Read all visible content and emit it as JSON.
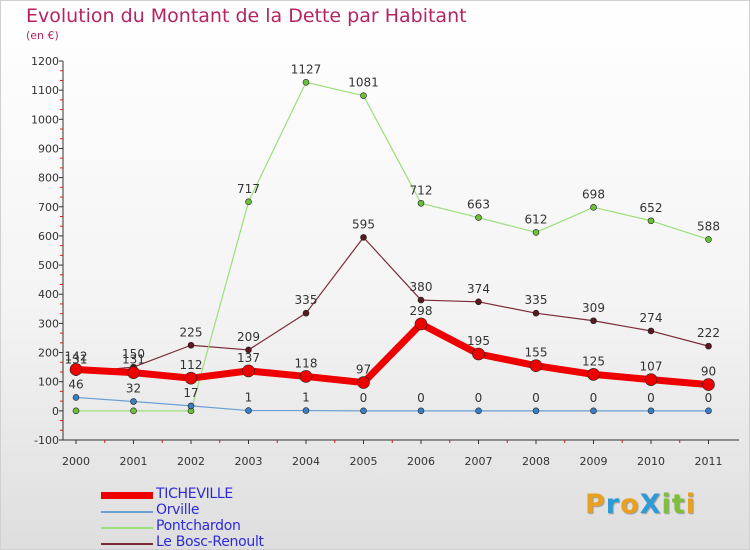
{
  "title": "Evolution du Montant de la Dette par Habitant",
  "subtitle": "(en €)",
  "logo": {
    "text": "ProXiti",
    "letters": [
      "P",
      "r",
      "o",
      "X",
      "i",
      "t",
      "i"
    ],
    "colors": [
      "#e8a020",
      "#2f9ad8",
      "#e8a020",
      "#2f9ad8",
      "#7fbf3a",
      "#7fbf3a",
      "#e8a020"
    ]
  },
  "chart_data": {
    "type": "line",
    "categories": [
      "2000",
      "2001",
      "2002",
      "2003",
      "2004",
      "2005",
      "2006",
      "2007",
      "2008",
      "2009",
      "2010",
      "2011"
    ],
    "ylim": [
      -100,
      1200
    ],
    "yticks": [
      -100,
      0,
      100,
      200,
      300,
      400,
      500,
      600,
      700,
      800,
      900,
      1000,
      1100,
      1200
    ],
    "grid": false,
    "legend_position": "bottom-left",
    "series": [
      {
        "name": "Le Bosc-Renoult",
        "color": "#7a2a35",
        "point_color": "#5a1820",
        "width": 1.2,
        "point_r": 3,
        "values": [
          131,
          150,
          225,
          209,
          335,
          595,
          380,
          374,
          335,
          309,
          274,
          222
        ],
        "labels": [
          "131",
          "150",
          "225",
          "209",
          "335",
          "595",
          "380",
          "374",
          "335",
          "309",
          "274",
          "222"
        ]
      },
      {
        "name": "Pontchardon",
        "color": "#99e07a",
        "point_color": "#6cbf3a",
        "width": 1.2,
        "point_r": 3,
        "values": [
          0,
          0,
          0,
          717,
          1127,
          1081,
          712,
          663,
          612,
          698,
          652,
          588
        ],
        "labels": [
          "",
          "",
          "",
          "717",
          "1127",
          "1081",
          "712",
          "663",
          "612",
          "698",
          "652",
          "588"
        ]
      },
      {
        "name": "Orville",
        "color": "#6a9fd4",
        "point_color": "#3a7fc4",
        "width": 1.2,
        "point_r": 3,
        "values": [
          46,
          32,
          17,
          1,
          1,
          0,
          0,
          0,
          0,
          0,
          0,
          0
        ],
        "labels": [
          "46",
          "32",
          "17",
          "1",
          "1",
          "0",
          "0",
          "0",
          "0",
          "0",
          "0",
          "0"
        ]
      },
      {
        "name": "TICHEVILLE",
        "color": "#ee0000",
        "point_color": "#ee0000",
        "width": 7,
        "point_r": 6,
        "values": [
          142,
          131,
          112,
          137,
          118,
          97,
          298,
          195,
          155,
          125,
          107,
          90
        ],
        "labels": [
          "142",
          "131",
          "112",
          "137",
          "118",
          "97",
          "298",
          "195",
          "155",
          "125",
          "107",
          "90"
        ]
      }
    ],
    "legend": [
      {
        "name": "TICHEVILLE",
        "color": "#ee0000",
        "text_color": "#2e2ad8"
      },
      {
        "name": "Orville",
        "color": "#6a9fd4",
        "text_color": "#2e2ad8"
      },
      {
        "name": "Pontchardon",
        "color": "#99e07a",
        "text_color": "#2e2ad8"
      },
      {
        "name": "Le Bosc-Renoult",
        "color": "#7a2a35",
        "text_color": "#2e2ad8"
      }
    ]
  }
}
